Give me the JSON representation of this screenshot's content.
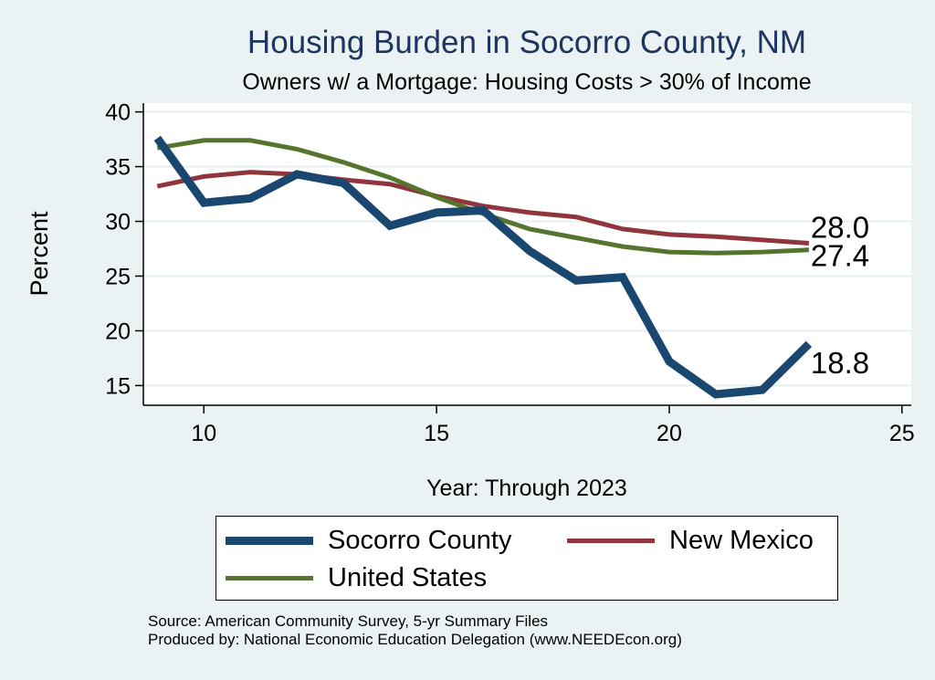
{
  "chart_data": {
    "type": "line",
    "title": "Housing Burden in Socorro County, NM",
    "subtitle": "Owners w/ a Mortgage: Housing Costs > 30% of Income",
    "xlabel": "Year: Through 2023",
    "ylabel": "Percent",
    "xlim": [
      8.7,
      25.2
    ],
    "ylim": [
      13.2,
      40.8
    ],
    "xticks": [
      10,
      15,
      20,
      25
    ],
    "yticks": [
      15,
      20,
      25,
      30,
      35,
      40
    ],
    "grid": "horizontal",
    "legend_position": "bottom",
    "x": [
      9,
      10,
      11,
      12,
      13,
      14,
      15,
      16,
      17,
      18,
      19,
      20,
      21,
      22,
      23
    ],
    "series": [
      {
        "name": "Socorro County",
        "color": "#1a476f",
        "values": [
          37.6,
          31.7,
          32.1,
          34.3,
          33.5,
          29.6,
          30.8,
          31.0,
          27.3,
          24.6,
          24.9,
          17.2,
          14.2,
          14.6,
          18.8
        ],
        "end_label": "18.8"
      },
      {
        "name": "New Mexico",
        "color": "#90353b",
        "values": [
          33.2,
          34.1,
          34.5,
          34.3,
          33.8,
          33.4,
          32.3,
          31.4,
          30.8,
          30.4,
          29.3,
          28.8,
          28.6,
          28.3,
          28.0
        ],
        "end_label": "28.0"
      },
      {
        "name": "United States",
        "color": "#55752f",
        "values": [
          36.7,
          37.4,
          37.4,
          36.6,
          35.4,
          34.0,
          32.2,
          30.7,
          29.3,
          28.5,
          27.7,
          27.2,
          27.1,
          27.2,
          27.4
        ],
        "end_label": "27.4"
      }
    ]
  },
  "source_lines": [
    "Source: American Community Survey, 5-yr Summary Files",
    "Produced by: National Economic Education Delegation (www.NEEDEcon.org)"
  ]
}
